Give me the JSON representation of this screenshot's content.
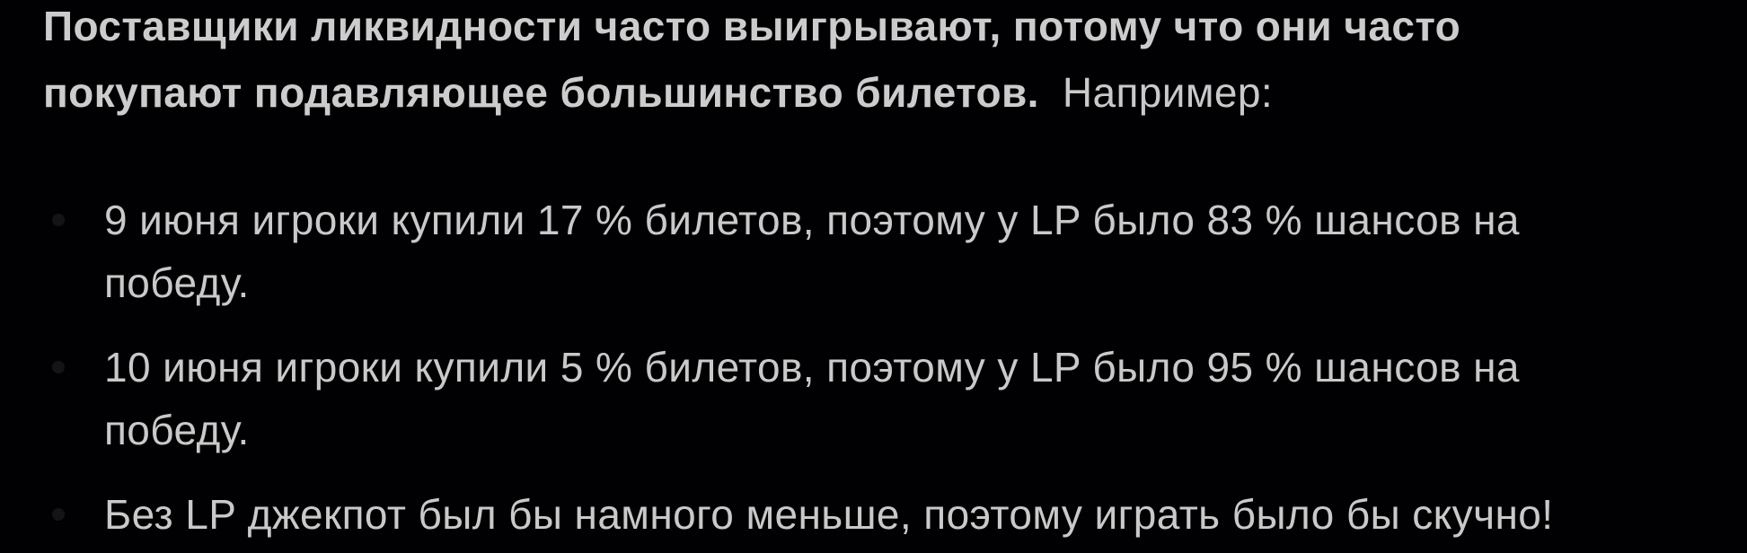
{
  "page": {
    "background_color": "#010103",
    "text_color": "#c9c9c9",
    "bullet_color": "#141416"
  },
  "lead": {
    "bold_text": "Поставщики ликвидности часто выигрывают, потому что они часто покупают подавляющее большинство билетов.",
    "bold_lines": [
      "Поставщики ликвидности часто выигрывают, потому что они часто",
      "покупают подавляющее большинство билетов."
    ],
    "example_label": "Например:"
  },
  "list": {
    "items": [
      {
        "full_text": "9 июня игроки купили 17 % билетов, поэтому у LP было 83 % шансов на победу.",
        "lines": [
          "9 июня игроки купили 17 % билетов, поэтому у LP было 83 % шансов на",
          "победу."
        ]
      },
      {
        "full_text": "10 июня игроки купили 5 % билетов, поэтому у LP было 95 % шансов на победу.",
        "lines": [
          "10 июня игроки купили 5 % билетов, поэтому у LP было 95 % шансов на",
          "победу."
        ]
      },
      {
        "full_text": "Без LP джекпот был бы намного меньше, поэтому играть было бы скучно!",
        "lines": [
          "Без LP джекпот был бы намного меньше, поэтому играть было бы скучно!"
        ]
      }
    ]
  }
}
